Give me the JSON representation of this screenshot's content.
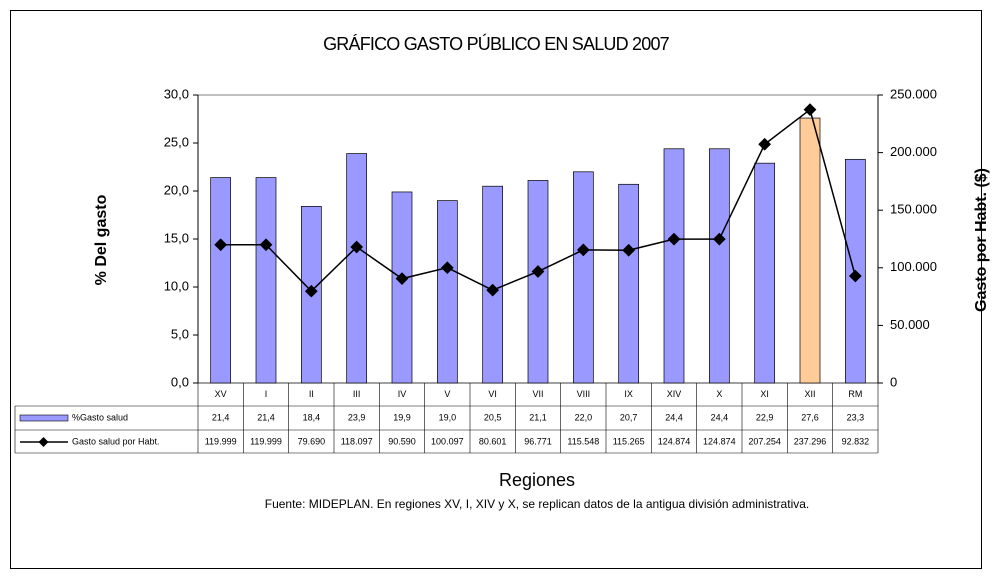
{
  "chart_data": {
    "type": "bar",
    "title": "GRÁFICO GASTO PÚBLICO EN SALUD 2007",
    "ylabel": "% Del gasto",
    "y2label": "Gasto por Habt. ($)",
    "xlabel": "Regiones",
    "note": "Fuente: MIDEPLAN. En regiones XV, I, XIV y X, se replican datos de la antigua división administrativa.",
    "categories": [
      "XV",
      "I",
      "II",
      "III",
      "IV",
      "V",
      "VI",
      "VII",
      "VIII",
      "IX",
      "XIV",
      "X",
      "XI",
      "XII",
      "RM"
    ],
    "series": [
      {
        "name": "%Gasto salud",
        "type": "bar",
        "color": "#9999ff",
        "colors": [
          "#9999ff",
          "#9999ff",
          "#9999ff",
          "#9999ff",
          "#9999ff",
          "#9999ff",
          "#9999ff",
          "#9999ff",
          "#9999ff",
          "#9999ff",
          "#9999ff",
          "#9999ff",
          "#9999ff",
          "#ffcc99",
          "#9999ff"
        ],
        "values": [
          21.4,
          21.4,
          18.4,
          23.9,
          19.9,
          19.0,
          20.5,
          21.1,
          22.0,
          20.7,
          24.4,
          24.4,
          22.9,
          27.6,
          23.3
        ],
        "value_labels": [
          "21,4",
          "21,4",
          "18,4",
          "23,9",
          "19,9",
          "19,0",
          "20,5",
          "21,1",
          "22,0",
          "20,7",
          "24,4",
          "24,4",
          "22,9",
          "27,6",
          "23,3"
        ]
      },
      {
        "name": "Gasto salud por Habt.",
        "type": "line",
        "axis": "y2",
        "color": "#000000",
        "values": [
          119999,
          119999,
          79690,
          118097,
          90590,
          100097,
          80601,
          96771,
          115548,
          115265,
          124874,
          124874,
          207254,
          237296,
          92832
        ],
        "value_labels": [
          "119.999",
          "119.999",
          "79.690",
          "118.097",
          "90.590",
          "100.097",
          "80.601",
          "96.771",
          "115.548",
          "115.265",
          "124.874",
          "124.874",
          "207.254",
          "237.296",
          "92.832"
        ]
      }
    ],
    "ylim": [
      0,
      30
    ],
    "yticks": [
      {
        "value": 0,
        "label": "0,0"
      },
      {
        "value": 5,
        "label": "5,0"
      },
      {
        "value": 10,
        "label": "10,0"
      },
      {
        "value": 15,
        "label": "15,0"
      },
      {
        "value": 20,
        "label": "20,0"
      },
      {
        "value": 25,
        "label": "25,0"
      },
      {
        "value": 30,
        "label": "30,0"
      }
    ],
    "y2lim": [
      0,
      250000
    ],
    "y2ticks": [
      0,
      {
        "value": 50000,
        "label": "50.000"
      },
      {
        "value": 100000,
        "label": "100.000"
      },
      {
        "value": 150000,
        "label": "150.000"
      },
      {
        "value": 200000,
        "label": "200.000"
      },
      {
        "value": 250000,
        "label": "250.000"
      }
    ],
    "grid": false
  }
}
